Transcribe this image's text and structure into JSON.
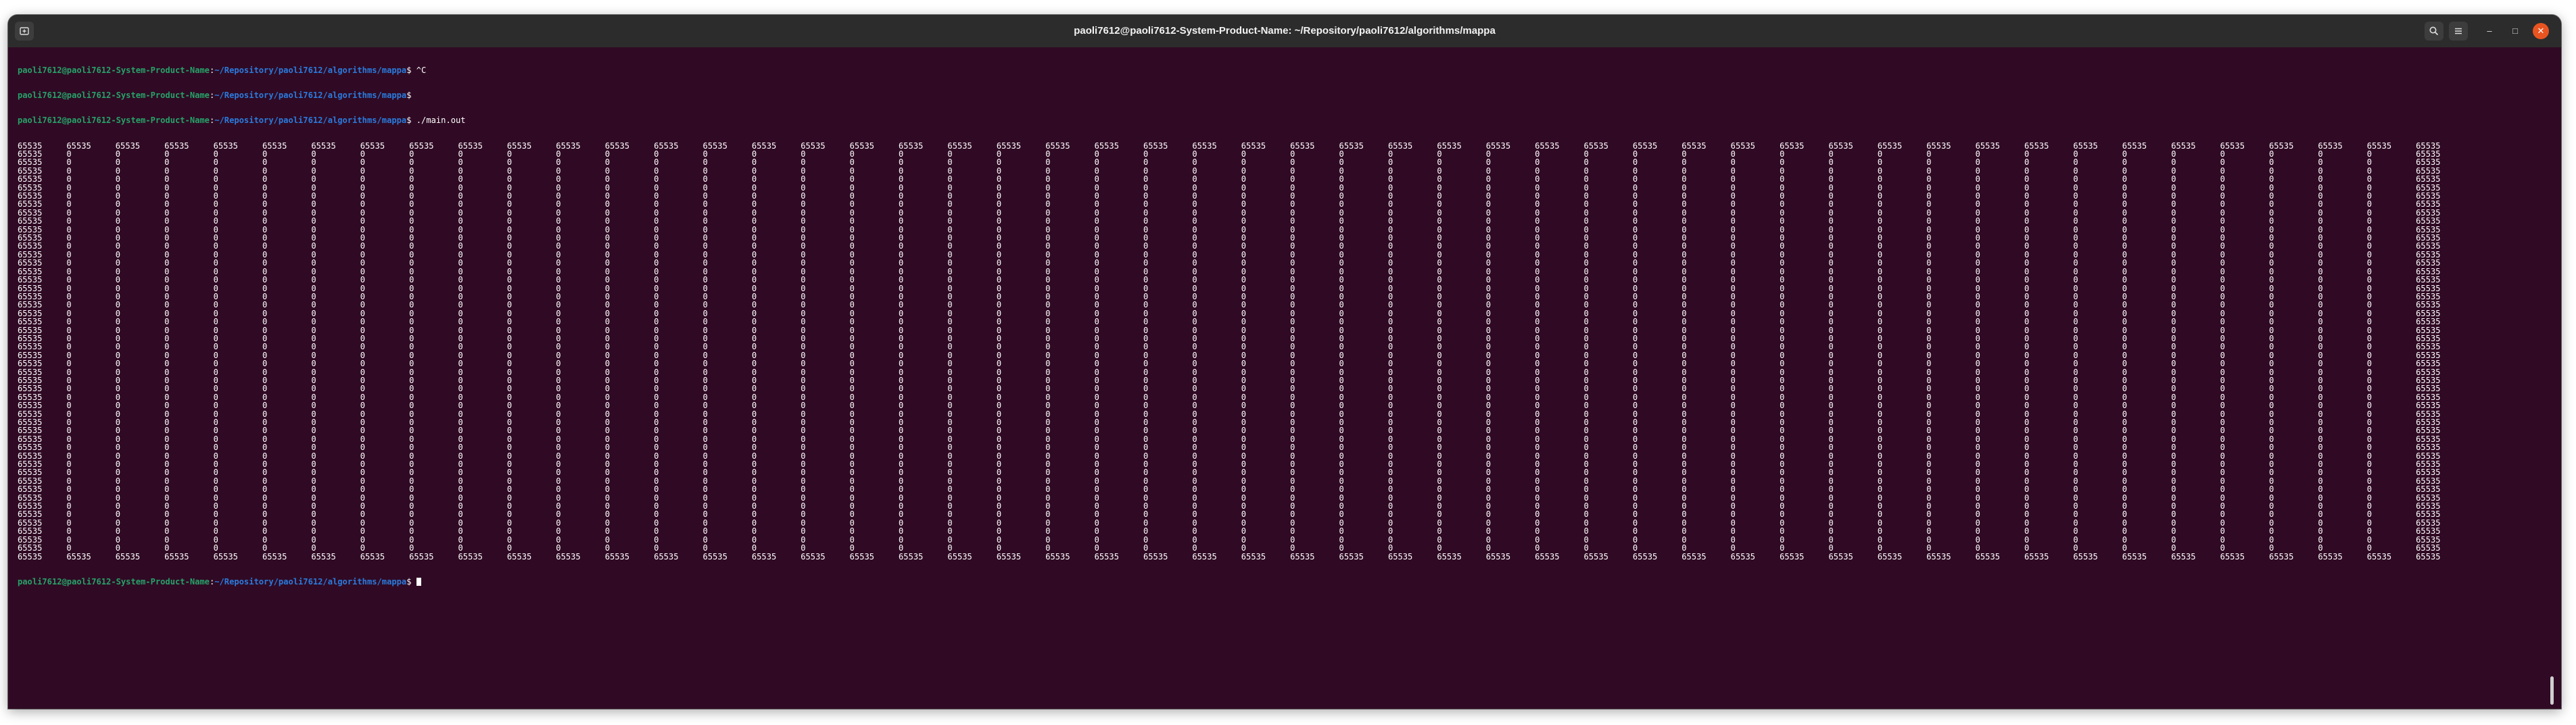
{
  "window": {
    "title": "paoli7612@paoli7612-System-Product-Name: ~/Repository/paoli7612/algorithms/mappa"
  },
  "titlebar": {
    "new_tab_icon": "new-tab-icon",
    "search_icon": "search-icon",
    "menu_icon": "hamburger-menu-icon",
    "minimize_glyph": "–",
    "maximize_glyph": "□",
    "close_glyph": "✕"
  },
  "terminal": {
    "prompt_user": "paoli7612@paoli7612-System-Product-Name",
    "prompt_path": "~/Repository/paoli7612/algorithms/mappa",
    "history": [
      {
        "command": "^C"
      },
      {
        "command": ""
      },
      {
        "command": "./main.out"
      }
    ],
    "output": {
      "border_value": "65535",
      "interior_value": "0",
      "columns": 50,
      "rows": 50
    },
    "final_command": ""
  },
  "colors": {
    "background": "#300a24",
    "prompt_user": "#26a269",
    "prompt_path": "#2a7bde",
    "text": "#ffffff",
    "titlebar": "#2c2c2c",
    "close_button": "#e95420"
  }
}
